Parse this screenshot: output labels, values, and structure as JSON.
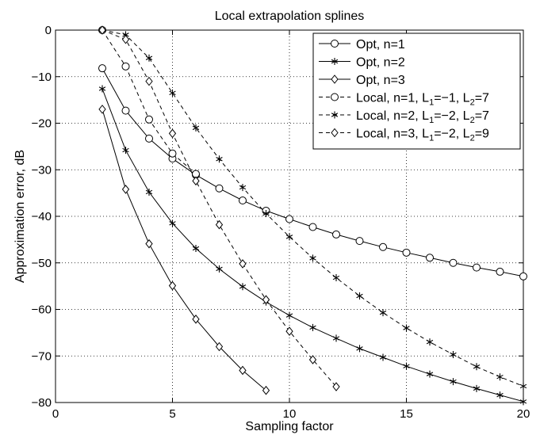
{
  "chart_data": {
    "type": "line",
    "title": "Local extrapolation splines",
    "xlabel": "Sampling factor",
    "ylabel": "Approximation error, dB",
    "xlim": [
      0,
      20
    ],
    "ylim": [
      -80,
      0
    ],
    "xticks": [
      0,
      5,
      10,
      15,
      20
    ],
    "yticks": [
      0,
      -10,
      -20,
      -30,
      -40,
      -50,
      -60,
      -70,
      -80
    ],
    "grid": true,
    "legend_position": "top-right",
    "series": [
      {
        "name": "Opt, n=1",
        "marker": "circle",
        "line": "solid",
        "x": [
          2,
          3,
          4,
          5,
          6,
          7,
          8,
          9,
          10,
          11,
          12,
          13,
          14,
          15,
          16,
          17,
          18,
          19,
          20
        ],
        "y": [
          -8.2,
          -17.3,
          -23.3,
          -27.6,
          -31.1,
          -34.0,
          -36.6,
          -38.8,
          -40.6,
          -42.3,
          -43.9,
          -45.3,
          -46.6,
          -47.8,
          -48.9,
          -50.0,
          -51.0,
          -51.9,
          -52.9
        ]
      },
      {
        "name": "Opt, n=2",
        "marker": "star",
        "line": "solid",
        "x": [
          2,
          3,
          4,
          5,
          6,
          7,
          8,
          9,
          10,
          11,
          12,
          13,
          14,
          15,
          16,
          17,
          18,
          19,
          20
        ],
        "y": [
          -12.6,
          -25.8,
          -34.8,
          -41.5,
          -46.9,
          -51.3,
          -55.1,
          -58.4,
          -61.3,
          -63.9,
          -66.2,
          -68.4,
          -70.3,
          -72.2,
          -73.9,
          -75.5,
          -77.0,
          -78.4,
          -79.8
        ]
      },
      {
        "name": "Opt, n=3",
        "marker": "diamond",
        "line": "solid",
        "x": [
          2,
          3,
          4,
          5,
          6,
          7,
          8,
          9
        ],
        "y": [
          -17.0,
          -34.2,
          -45.9,
          -54.9,
          -62.1,
          -68.0,
          -73.1,
          -77.4
        ]
      },
      {
        "name": "Local, n=1, L₁=−1, L₂=7",
        "marker": "circle",
        "line": "dashed",
        "x": [
          2,
          3,
          4,
          5,
          6
        ],
        "y": [
          0.0,
          -7.8,
          -19.2,
          -26.5,
          -30.9
        ]
      },
      {
        "name": "Local, n=2, L₁=−2, L₂=7",
        "marker": "star",
        "line": "dashed",
        "x": [
          2,
          3,
          4,
          5,
          6,
          7,
          8,
          9,
          10,
          11,
          12,
          13,
          14,
          15,
          16,
          17,
          18,
          19,
          20
        ],
        "y": [
          0.0,
          -1.0,
          -6.0,
          -13.5,
          -21.0,
          -27.7,
          -33.8,
          -39.4,
          -44.4,
          -49.0,
          -53.2,
          -57.1,
          -60.7,
          -64.0,
          -67.0,
          -69.7,
          -72.3,
          -74.5,
          -76.5
        ]
      },
      {
        "name": "Local, n=3, L₁=−2, L₂=9",
        "marker": "diamond",
        "line": "dashed",
        "x": [
          2,
          3,
          4,
          5,
          6,
          7,
          8,
          9,
          10,
          11,
          12
        ],
        "y": [
          0.0,
          -2.0,
          -11.0,
          -22.2,
          -32.4,
          -41.8,
          -50.2,
          -57.9,
          -64.7,
          -70.8,
          -76.6
        ]
      }
    ],
    "legend_entries": [
      {
        "label": "Opt, n=1"
      },
      {
        "label": "Opt, n=2"
      },
      {
        "label": "Opt, n=3"
      },
      {
        "prefix": "Local, n=1, L",
        "sub1": "1",
        "mid": "=−1, L",
        "sub2": "2",
        "suffix": "=7"
      },
      {
        "prefix": "Local, n=2, L",
        "sub1": "1",
        "mid": "=−2, L",
        "sub2": "2",
        "suffix": "=7"
      },
      {
        "prefix": "Local, n=3, L",
        "sub1": "1",
        "mid": "=−2, L",
        "sub2": "2",
        "suffix": "=9"
      }
    ]
  }
}
